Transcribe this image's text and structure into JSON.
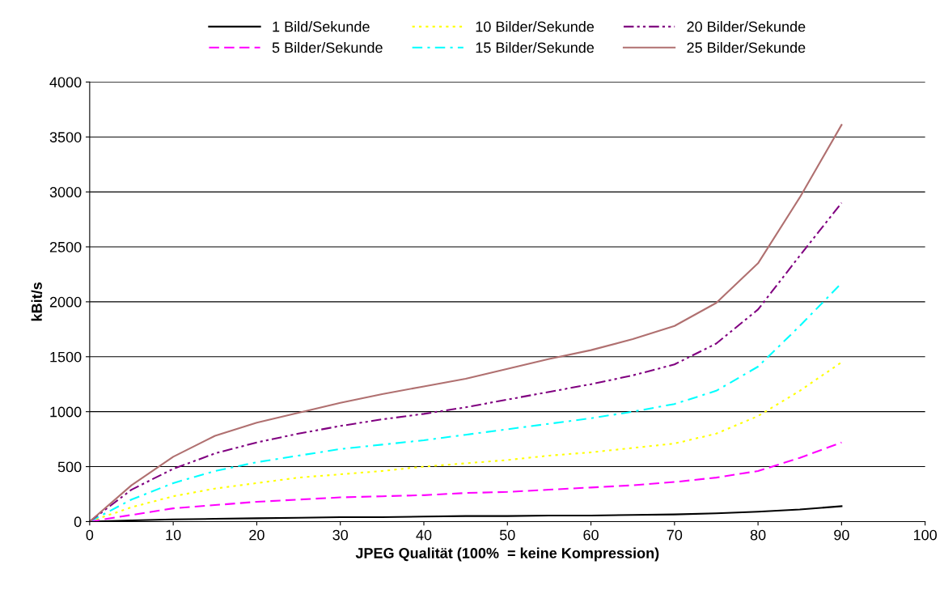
{
  "chart_data": {
    "type": "line",
    "xlabel": "JPEG Qualität (100%  = keine Kompression)",
    "ylabel": "kBit/s",
    "x": [
      0,
      5,
      10,
      15,
      20,
      25,
      30,
      35,
      40,
      45,
      50,
      55,
      60,
      65,
      70,
      75,
      80,
      85,
      90
    ],
    "xlim": [
      0,
      100
    ],
    "xticks": [
      0,
      10,
      20,
      30,
      40,
      50,
      60,
      70,
      80,
      90,
      100
    ],
    "ylim": [
      0,
      4000
    ],
    "yticks": [
      0,
      500,
      1000,
      1500,
      2000,
      2500,
      3000,
      3500,
      4000
    ],
    "grid": "y",
    "legend": "top",
    "marker": "none",
    "series": [
      {
        "name": "1 Bild/Sekunde",
        "color": "#000000",
        "line_style": "solid",
        "values": [
          0,
          10,
          20,
          25,
          30,
          35,
          40,
          40,
          45,
          50,
          50,
          55,
          55,
          60,
          65,
          75,
          90,
          110,
          140
        ]
      },
      {
        "name": "5 Bilder/Sekunde",
        "color": "#ff00ff",
        "line_style": "dashed",
        "values": [
          0,
          60,
          120,
          150,
          180,
          200,
          220,
          230,
          240,
          260,
          270,
          290,
          310,
          330,
          360,
          400,
          460,
          580,
          720
        ]
      },
      {
        "name": "10 Bilder/Sekunde",
        "color": "#ffff00",
        "line_style": "dotted",
        "values": [
          0,
          130,
          230,
          300,
          350,
          400,
          430,
          460,
          500,
          530,
          560,
          600,
          630,
          670,
          710,
          800,
          960,
          1190,
          1450
        ]
      },
      {
        "name": "15 Bilder/Sekunde",
        "color": "#00ffff",
        "line_style": "dashdot",
        "values": [
          0,
          200,
          350,
          460,
          540,
          600,
          660,
          700,
          740,
          790,
          840,
          890,
          940,
          1000,
          1070,
          1190,
          1410,
          1780,
          2170
        ]
      },
      {
        "name": "20 Bilder/Sekunde",
        "color": "#800080",
        "line_style": "dashdotdot",
        "values": [
          0,
          290,
          480,
          620,
          720,
          800,
          870,
          930,
          980,
          1040,
          1110,
          1180,
          1250,
          1330,
          1430,
          1620,
          1930,
          2420,
          2900
        ]
      },
      {
        "name": "25 Bilder/Sekunde",
        "color": "#b07070",
        "line_style": "solid",
        "values": [
          0,
          330,
          590,
          780,
          900,
          990,
          1080,
          1160,
          1230,
          1300,
          1390,
          1480,
          1560,
          1660,
          1780,
          1990,
          2350,
          2950,
          3610
        ]
      }
    ]
  }
}
